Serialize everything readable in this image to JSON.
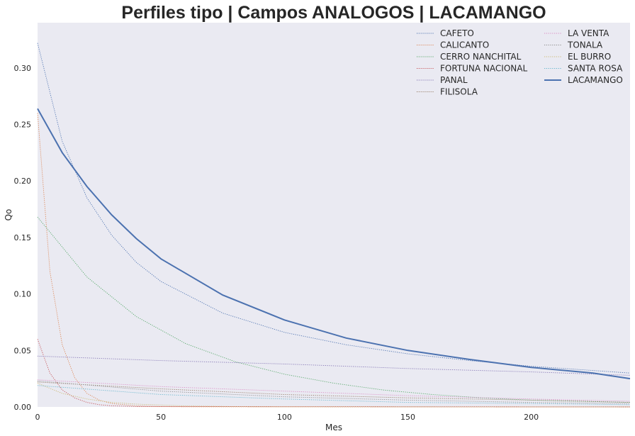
{
  "chart_data": {
    "type": "line",
    "title": "Perfiles tipo | Campos ANALOGOS | LACAMANGO",
    "xlabel": "Mes",
    "ylabel": "Qo",
    "xlim": [
      0,
      240
    ],
    "ylim": [
      0,
      0.34
    ],
    "xticks": [
      0,
      50,
      100,
      150,
      200
    ],
    "yticks": [
      0.0,
      0.05,
      0.1,
      0.15,
      0.2,
      0.25,
      0.3
    ],
    "xtick_labels": [
      "0",
      "50",
      "100",
      "150",
      "200"
    ],
    "ytick_labels": [
      "0.00",
      "0.05",
      "0.10",
      "0.15",
      "0.20",
      "0.25",
      "0.30"
    ],
    "grid": false,
    "background": "#eaeaf2",
    "legend_position": "top-right",
    "legend_columns": 2,
    "series": [
      {
        "name": "CAFETO",
        "color": "#4c72b0",
        "style": "dotted",
        "x": [
          0,
          10,
          20,
          30,
          40,
          50,
          75,
          100,
          125,
          150,
          175,
          200,
          240
        ],
        "y": [
          0.322,
          0.235,
          0.185,
          0.152,
          0.128,
          0.111,
          0.083,
          0.066,
          0.055,
          0.047,
          0.041,
          0.036,
          0.03
        ]
      },
      {
        "name": "CALICANTO",
        "color": "#dd8452",
        "style": "dotted",
        "x": [
          0,
          5,
          10,
          15,
          20,
          25,
          30,
          40,
          50,
          60,
          240
        ],
        "y": [
          0.26,
          0.12,
          0.055,
          0.026,
          0.012,
          0.006,
          0.003,
          0.001,
          0.0003,
          0.0001,
          0.0
        ]
      },
      {
        "name": "CERRO NANCHITAL",
        "color": "#55a868",
        "style": "dotted",
        "x": [
          0,
          20,
          40,
          50,
          60,
          80,
          100,
          120,
          140,
          160,
          180,
          200,
          240
        ],
        "y": [
          0.168,
          0.115,
          0.08,
          0.068,
          0.056,
          0.04,
          0.029,
          0.021,
          0.015,
          0.011,
          0.008,
          0.006,
          0.004
        ]
      },
      {
        "name": "FORTUNA NACIONAL",
        "color": "#c44e52",
        "style": "dotted",
        "x": [
          0,
          5,
          10,
          15,
          20,
          25,
          30,
          40,
          240
        ],
        "y": [
          0.06,
          0.03,
          0.015,
          0.008,
          0.004,
          0.002,
          0.001,
          0.0003,
          0.0
        ]
      },
      {
        "name": "PANAL",
        "color": "#8172b3",
        "style": "dotted",
        "x": [
          0,
          50,
          100,
          150,
          200,
          240
        ],
        "y": [
          0.045,
          0.041,
          0.038,
          0.034,
          0.031,
          0.028
        ]
      },
      {
        "name": "FILISOLA",
        "color": "#937860",
        "style": "dotted",
        "x": [
          0,
          50,
          100,
          150,
          200,
          240
        ],
        "y": [
          0.022,
          0.016,
          0.011,
          0.008,
          0.006,
          0.004
        ]
      },
      {
        "name": "LA VENTA",
        "color": "#da8bc3",
        "style": "dotted",
        "x": [
          0,
          50,
          100,
          150,
          200,
          240
        ],
        "y": [
          0.024,
          0.018,
          0.014,
          0.01,
          0.007,
          0.005
        ]
      },
      {
        "name": "TONALA",
        "color": "#8c8c8c",
        "style": "dotted",
        "x": [
          0,
          50,
          100,
          150,
          200,
          240
        ],
        "y": [
          0.023,
          0.014,
          0.009,
          0.006,
          0.004,
          0.003
        ]
      },
      {
        "name": "EL BURRO",
        "color": "#ccb974",
        "style": "dotted",
        "x": [
          0,
          10,
          20,
          30,
          40,
          60,
          80,
          100,
          240
        ],
        "y": [
          0.021,
          0.012,
          0.007,
          0.004,
          0.0025,
          0.0009,
          0.0003,
          0.0001,
          0.0
        ]
      },
      {
        "name": "SANTA ROSA",
        "color": "#64b5cd",
        "style": "dotted",
        "x": [
          0,
          50,
          100,
          150,
          200,
          240
        ],
        "y": [
          0.019,
          0.011,
          0.007,
          0.004,
          0.003,
          0.002
        ]
      },
      {
        "name": "LACAMANGO",
        "color": "#4c72b0",
        "style": "solid",
        "x": [
          0,
          10,
          20,
          30,
          40,
          50,
          75,
          100,
          125,
          150,
          175,
          200,
          225,
          240
        ],
        "y": [
          0.264,
          0.225,
          0.195,
          0.17,
          0.149,
          0.131,
          0.099,
          0.077,
          0.061,
          0.05,
          0.042,
          0.035,
          0.03,
          0.025
        ]
      }
    ]
  }
}
